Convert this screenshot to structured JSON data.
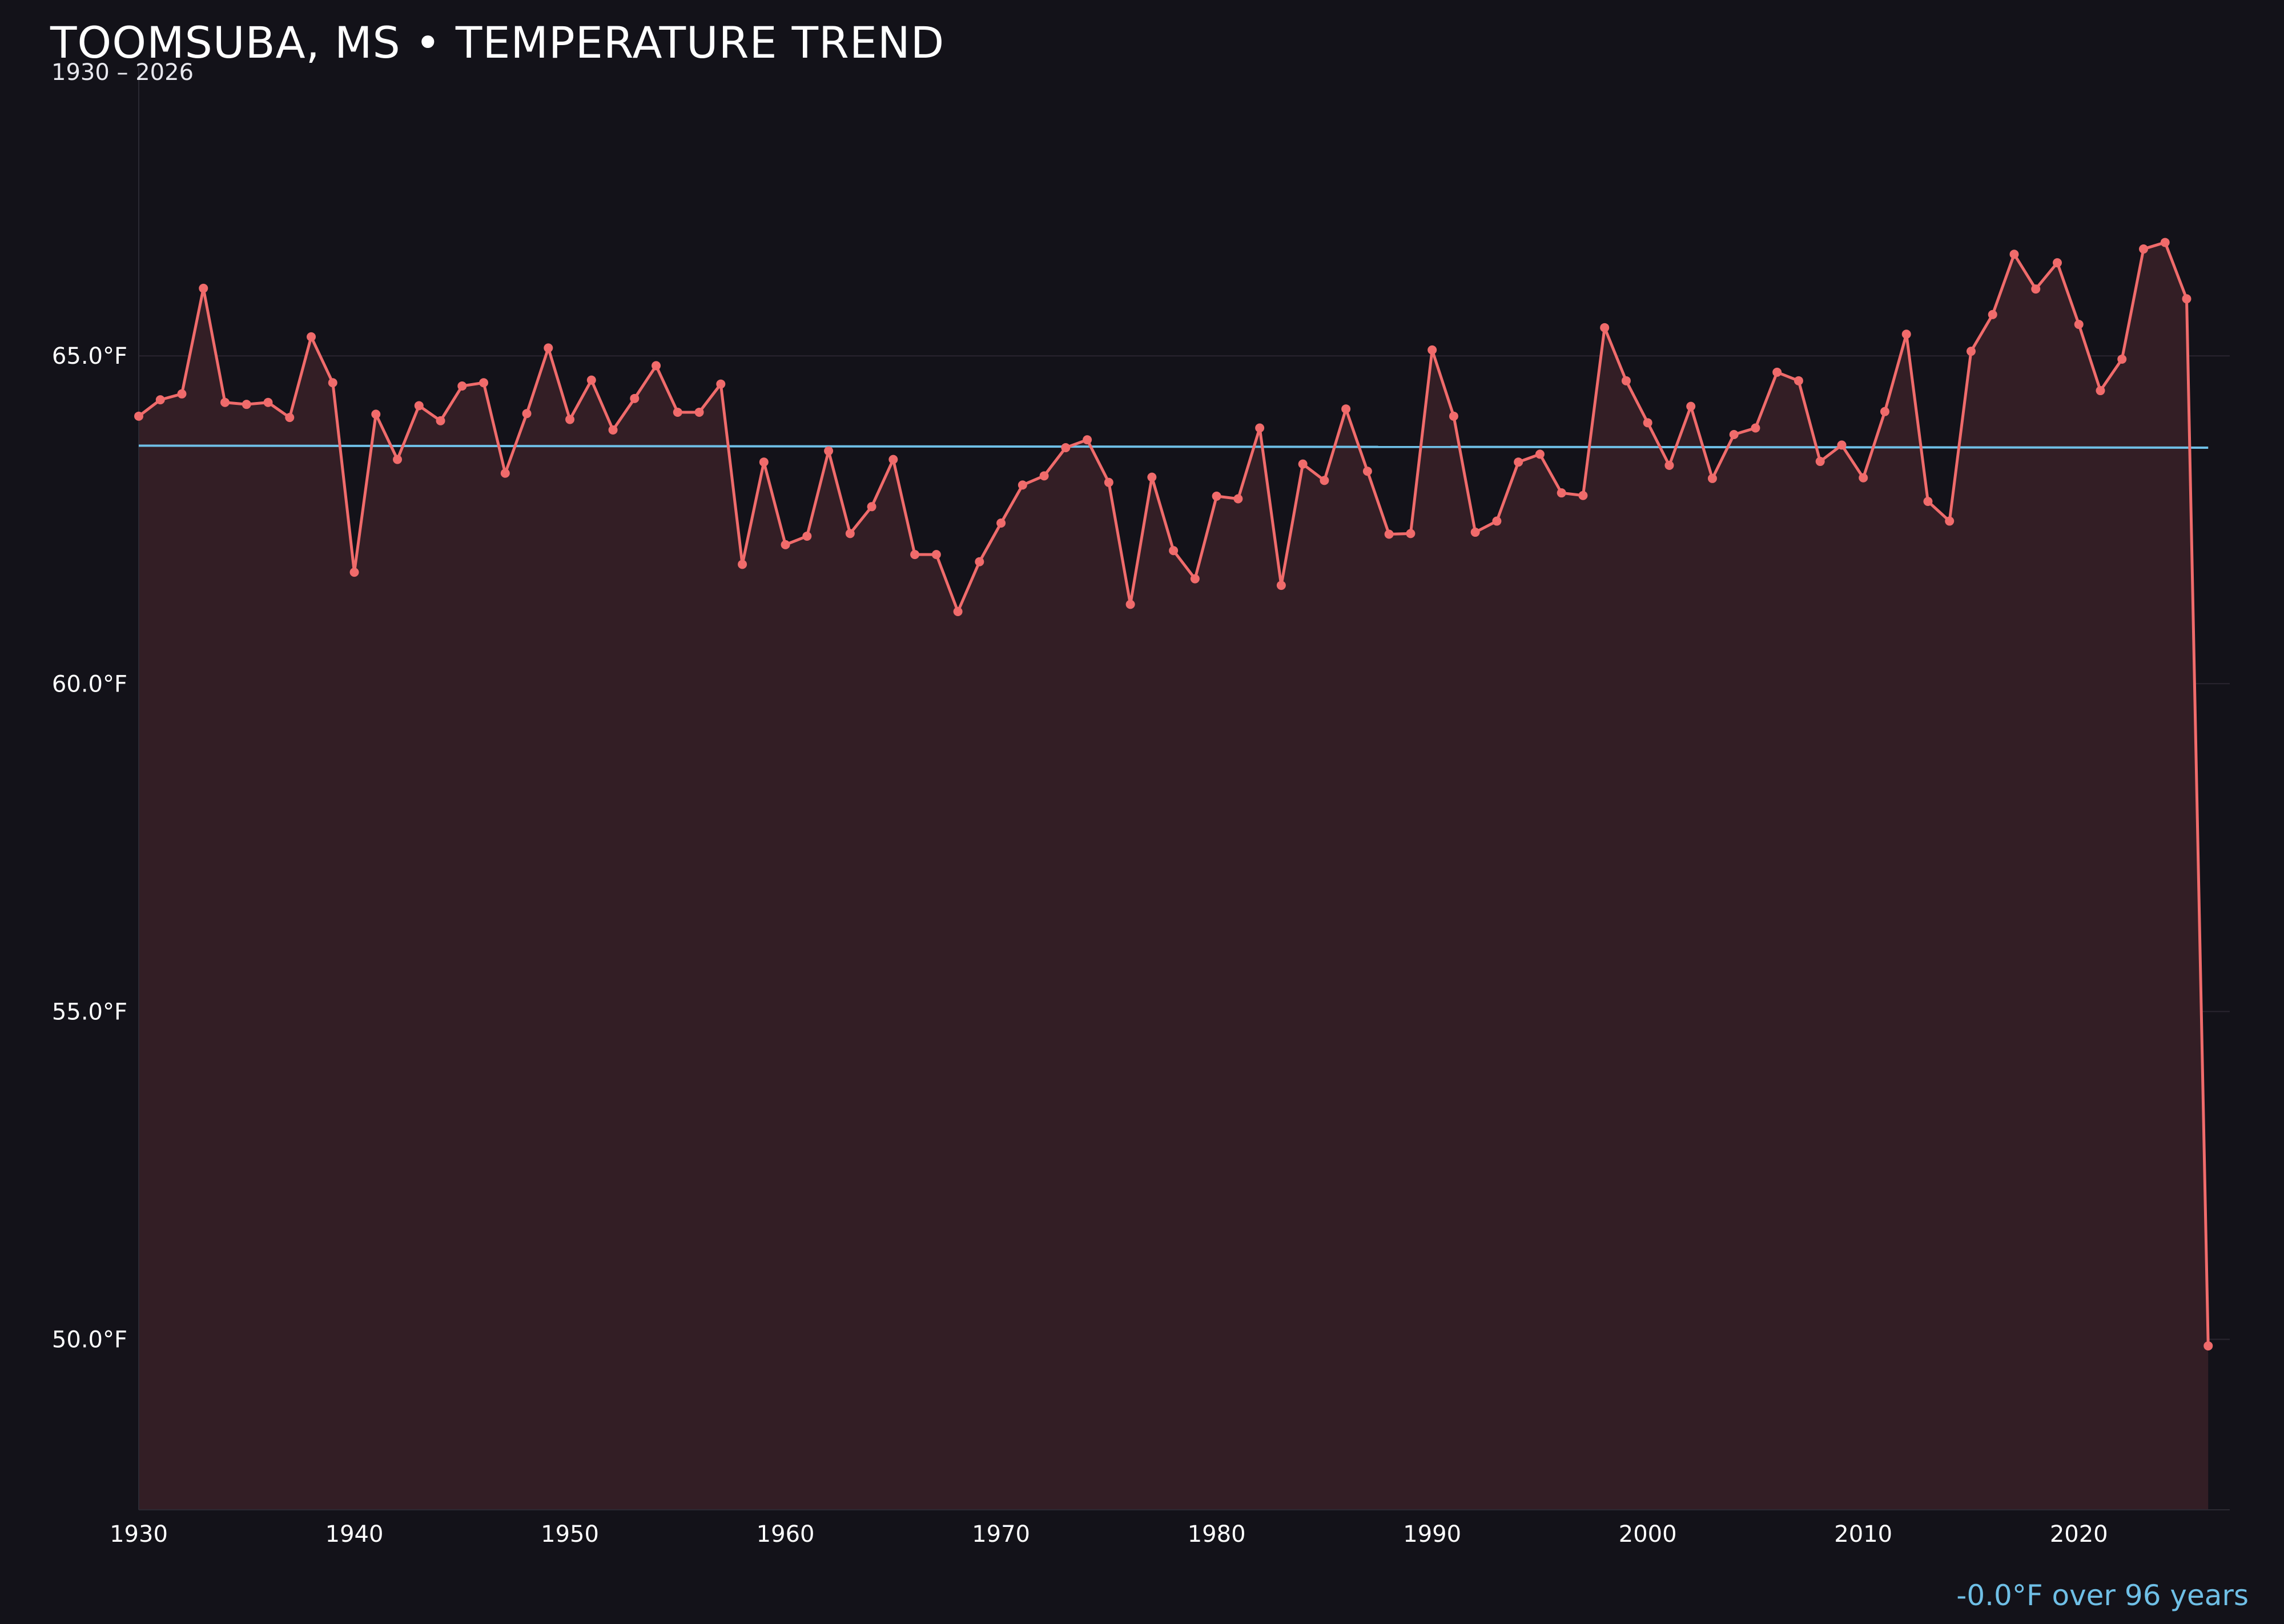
{
  "header": {
    "title": "TOOMSUBA, MS • TEMPERATURE TREND",
    "subtitle": "1930 – 2026"
  },
  "footer": {
    "trend_text": "-0.0°F over 96 years"
  },
  "colors": {
    "background": "#131219",
    "line": "#f06b6b",
    "area_fill": "#331e25",
    "trend": "#6fbfe6",
    "grid": "#2a2530"
  },
  "chart_data": {
    "type": "line",
    "title": "TOOMSUBA, MS • TEMPERATURE TREND",
    "subtitle": "1930 – 2026",
    "xlabel": "",
    "ylabel": "",
    "xlim": [
      1930,
      2027
    ],
    "ylim": [
      47.4,
      69.4
    ],
    "x_ticks": [
      1930,
      1940,
      1950,
      1960,
      1970,
      1980,
      1990,
      2000,
      2010,
      2020
    ],
    "y_ticks": [
      {
        "value": 50,
        "label": "50.0°F"
      },
      {
        "value": 55,
        "label": "55.0°F"
      },
      {
        "value": 60,
        "label": "60.0°F"
      },
      {
        "value": 65,
        "label": "65.0°F"
      }
    ],
    "grid": true,
    "series": [
      {
        "x": [
          1930,
          1931,
          1932,
          1933,
          1934,
          1935,
          1936,
          1937,
          1938,
          1939,
          1940,
          1941,
          1942,
          1943,
          1944,
          1945,
          1946,
          1947,
          1948,
          1949,
          1950,
          1951,
          1952,
          1953,
          1954,
          1955,
          1956,
          1957,
          1958,
          1959,
          1960,
          1961,
          1962,
          1963,
          1964,
          1965,
          1966,
          1967,
          1968,
          1969,
          1970,
          1971,
          1972,
          1973,
          1974,
          1975,
          1976,
          1977,
          1978,
          1979,
          1980,
          1981,
          1982,
          1983,
          1984,
          1985,
          1986,
          1987,
          1988,
          1989,
          1990,
          1991,
          1992,
          1993,
          1994,
          1995,
          1996,
          1997,
          1998,
          1999,
          2000,
          2001,
          2002,
          2003,
          2004,
          2005,
          2006,
          2007,
          2008,
          2009,
          2010,
          2011,
          2012,
          2013,
          2014,
          2015,
          2016,
          2017,
          2018,
          2019,
          2020,
          2021,
          2022,
          2023,
          2024,
          2025,
          2026
        ],
        "values": [
          64.08,
          64.33,
          64.42,
          66.03,
          64.29,
          64.26,
          64.29,
          64.06,
          65.29,
          64.59,
          61.7,
          64.11,
          63.42,
          64.24,
          64.01,
          64.54,
          64.59,
          63.21,
          64.12,
          65.12,
          64.03,
          64.63,
          63.87,
          64.35,
          64.85,
          64.14,
          64.14,
          64.57,
          61.82,
          63.38,
          62.12,
          62.25,
          63.55,
          62.29,
          62.7,
          63.42,
          61.97,
          61.97,
          61.1,
          61.86,
          62.45,
          63.03,
          63.17,
          63.6,
          63.72,
          63.07,
          61.21,
          63.15,
          62.03,
          61.6,
          62.86,
          62.82,
          63.9,
          61.5,
          63.35,
          63.1,
          64.19,
          63.24,
          62.28,
          62.29,
          65.09,
          64.08,
          62.31,
          62.48,
          63.38,
          63.5,
          62.91,
          62.87,
          65.43,
          64.62,
          63.98,
          63.33,
          64.23,
          63.13,
          63.8,
          63.9,
          64.75,
          64.62,
          63.39,
          63.64,
          63.14,
          64.15,
          65.33,
          62.78,
          62.48,
          65.07,
          65.63,
          66.55,
          66.02,
          66.42,
          65.48,
          64.47,
          64.95,
          66.63,
          66.73,
          65.87,
          49.9
        ]
      }
    ],
    "trend": {
      "start_year": 1930,
      "end_year": 2026,
      "start_value": 63.63,
      "end_value": 63.6
    }
  }
}
